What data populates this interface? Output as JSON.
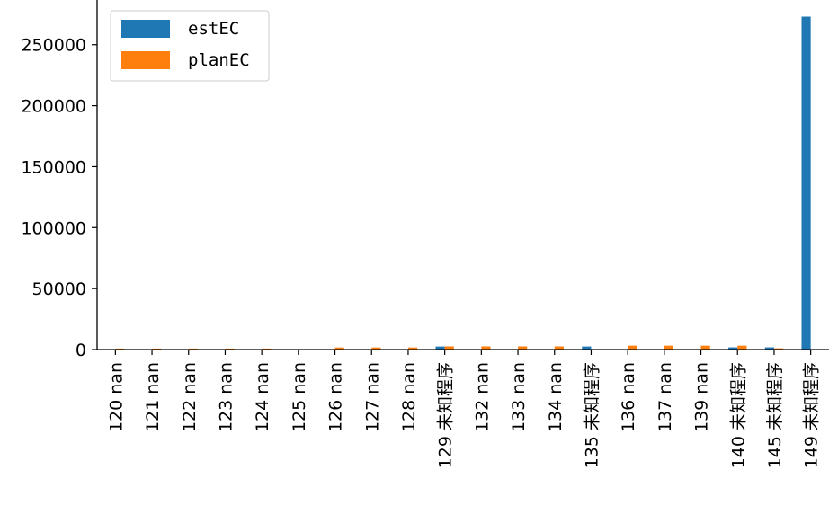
{
  "chart_data": {
    "type": "bar",
    "categories": [
      "120 nan",
      "121 nan",
      "122 nan",
      "123 nan",
      "124 nan",
      "125 nan",
      "126 nan",
      "127 nan",
      "128 nan",
      "129 未知程序",
      "132 nan",
      "133 nan",
      "134 nan",
      "135 未知程序",
      "136 nan",
      "137 nan",
      "139 nan",
      "140 未知程序",
      "145 未知程序",
      "149 未知程序"
    ],
    "series": [
      {
        "name": "estEC",
        "color": "#1f77b4",
        "values": [
          0,
          0,
          0,
          0,
          0,
          0,
          0,
          0,
          0,
          2500,
          0,
          0,
          0,
          2500,
          0,
          0,
          0,
          1800,
          1800,
          273000
        ]
      },
      {
        "name": "planEC",
        "color": "#ff7f0e",
        "values": [
          800,
          800,
          800,
          800,
          800,
          0,
          1700,
          1700,
          1700,
          2600,
          2600,
          2600,
          2600,
          0,
          3200,
          3200,
          3200,
          3200,
          1000,
          0
        ]
      }
    ],
    "yticks": [
      0,
      50000,
      100000,
      150000,
      200000,
      250000
    ],
    "ylim": [
      0,
      286650
    ],
    "title": "",
    "xlabel": "",
    "ylabel": "",
    "legend_position": "upper-left",
    "grid": false
  }
}
